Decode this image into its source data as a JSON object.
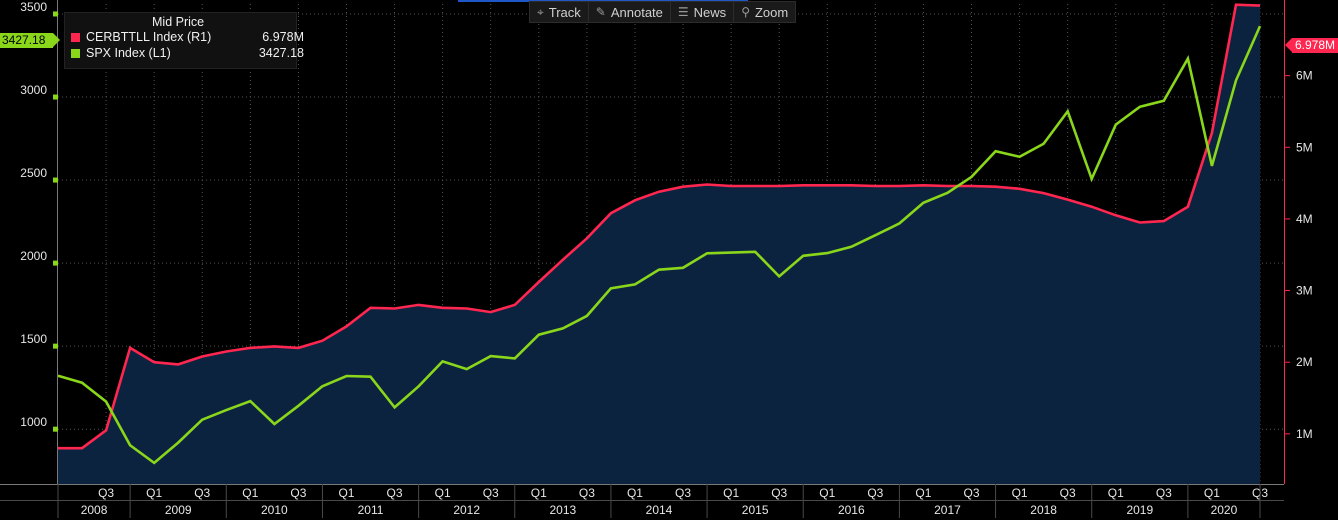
{
  "toolbar": {
    "items": [
      {
        "label": "Track",
        "icon": "crosshair-icon",
        "glyph": "⌖"
      },
      {
        "label": "Annotate",
        "icon": "pencil-icon",
        "glyph": "✎"
      },
      {
        "label": "News",
        "icon": "news-list-icon",
        "glyph": "☰"
      },
      {
        "label": "Zoom",
        "icon": "magnifier-icon",
        "glyph": "⚲"
      }
    ]
  },
  "legend": {
    "title": "Mid Price",
    "entries": [
      {
        "name": "CERBTTLL Index  (R1)",
        "value": "6.978M",
        "color": "#ff2650"
      },
      {
        "name": "SPX Index  (L1)",
        "value": "3427.18",
        "color": "#8ad61a"
      }
    ]
  },
  "last_value_labels": {
    "left": "3427.18",
    "right": "6.978M"
  },
  "colors": {
    "background": "#000000",
    "area": "#0c2340",
    "spx": "#8ad61a",
    "cerb": "#ff2650",
    "grid": "#555555"
  },
  "chart_data": {
    "type": "line",
    "x_labels": [
      "Q3",
      "Q1",
      "Q3",
      "Q1",
      "Q3",
      "Q1",
      "Q3",
      "Q1",
      "Q3",
      "Q1",
      "Q3",
      "Q1",
      "Q3",
      "Q1",
      "Q3",
      "Q1",
      "Q3",
      "Q1",
      "Q3",
      "Q1",
      "Q3",
      "Q1",
      "Q3",
      "Q1",
      "Q3"
    ],
    "x_label_indices": [
      2,
      4,
      6,
      8,
      10,
      12,
      14,
      16,
      18,
      20,
      22,
      24,
      26,
      28,
      30,
      32,
      34,
      36,
      38,
      40,
      42,
      44,
      46,
      48,
      50
    ],
    "years": [
      "2008",
      "2009",
      "2010",
      "2011",
      "2012",
      "2013",
      "2014",
      "2015",
      "2016",
      "2017",
      "2018",
      "2019",
      "2020"
    ],
    "year_index_ranges": [
      [
        0,
        3
      ],
      [
        3,
        7
      ],
      [
        7,
        11
      ],
      [
        11,
        15
      ],
      [
        15,
        19
      ],
      [
        19,
        23
      ],
      [
        23,
        27
      ],
      [
        27,
        31
      ],
      [
        31,
        35
      ],
      [
        35,
        39
      ],
      [
        39,
        43
      ],
      [
        43,
        47
      ],
      [
        47,
        50
      ]
    ],
    "left_axis": {
      "ticks": [
        1000,
        1500,
        2000,
        2500,
        3000,
        3500
      ],
      "ylim": [
        670,
        3560
      ]
    },
    "right_axis": {
      "ticks": [
        "1M",
        "2M",
        "3M",
        "4M",
        "5M",
        "6M"
      ],
      "tick_values": [
        1,
        2,
        3,
        4,
        5,
        6
      ],
      "ylim": [
        0.3,
        7.0
      ]
    },
    "series": [
      {
        "name": "SPX Index  (L1)",
        "axis": "left",
        "values": [
          1322,
          1280,
          1166,
          903,
          797,
          919,
          1057,
          1115,
          1169,
          1031,
          1141,
          1258,
          1320,
          1316,
          1131,
          1258,
          1408,
          1362,
          1440,
          1426,
          1569,
          1607,
          1682,
          1848,
          1872,
          1960,
          1972,
          2059,
          2063,
          2068,
          1920,
          2044,
          2060,
          2098,
          2168,
          2239,
          2363,
          2423,
          2519,
          2674,
          2640,
          2718,
          2914,
          2507,
          2834,
          2941,
          2977,
          3231,
          2585,
          3100,
          3427
        ]
      },
      {
        "name": "CERBTTLL Index  (R1)",
        "axis": "right",
        "values": [
          0.8,
          0.8,
          1.05,
          2.2,
          2.0,
          1.97,
          2.08,
          2.15,
          2.2,
          2.22,
          2.2,
          2.3,
          2.5,
          2.76,
          2.75,
          2.8,
          2.76,
          2.75,
          2.7,
          2.8,
          3.12,
          3.43,
          3.73,
          4.08,
          4.26,
          4.38,
          4.45,
          4.48,
          4.46,
          4.46,
          4.46,
          4.47,
          4.47,
          4.47,
          4.46,
          4.46,
          4.47,
          4.46,
          4.46,
          4.45,
          4.42,
          4.36,
          4.27,
          4.17,
          4.05,
          3.95,
          3.97,
          4.17,
          5.2,
          6.99,
          6.978
        ]
      }
    ]
  }
}
